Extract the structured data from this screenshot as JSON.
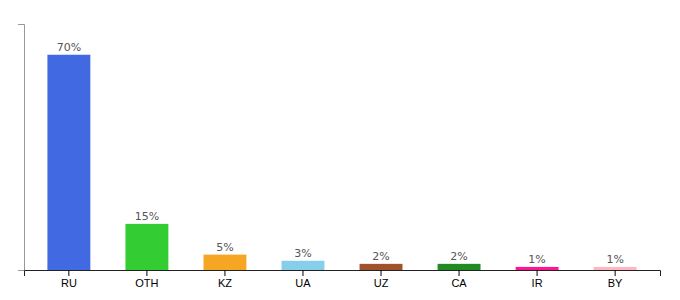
{
  "chart_data": {
    "type": "bar",
    "categories": [
      "RU",
      "OTH",
      "KZ",
      "UA",
      "UZ",
      "CA",
      "IR",
      "BY"
    ],
    "values": [
      70,
      15,
      5,
      3,
      2,
      2,
      1,
      1
    ],
    "value_labels": [
      "70%",
      "15%",
      "5%",
      "3%",
      "2%",
      "2%",
      "1%",
      "1%"
    ],
    "colors": [
      "#4169e1",
      "#33cc33",
      "#f5a623",
      "#87ceeb",
      "#a0522d",
      "#228b22",
      "#ff1493",
      "#ffb6c1"
    ],
    "ylim": [
      0,
      80
    ],
    "data_labels": true,
    "tick_labels": "x",
    "grid": false
  }
}
